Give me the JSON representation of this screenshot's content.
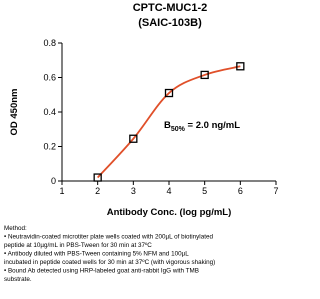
{
  "chart_data": {
    "type": "line",
    "title": "CPTC-MUC1-2",
    "subtitle": "(SAIC-103B)",
    "y_label": "OD 450nm",
    "x_label": "Antibody Conc. (log pg/mL)",
    "annotation": {
      "main": "B",
      "subscript": "50%",
      "suffix": " = 2.0 ng/mL"
    },
    "x": [
      2,
      3,
      4,
      5,
      6
    ],
    "series": [
      {
        "color": "#e0502a",
        "values": [
          0.02,
          0.245,
          0.51,
          0.615,
          0.665
        ]
      }
    ],
    "xlim": [
      1,
      7
    ],
    "xticks": [
      1,
      2,
      3,
      4,
      5,
      6,
      7
    ],
    "ylim": [
      0,
      0.8
    ],
    "yticks": [
      0,
      0.2,
      0.4,
      0.6,
      0.8
    ]
  },
  "notes": {
    "heading": "Method:",
    "lines": [
      "• Neutravidin-coated microtiter plate wells coated with 200µL of biotinylated",
      "peptide  at 10µg/mL in PBS-Tween for 30 min at 37ºC",
      "• Antibody diluted with PBS-Tween containing 5% NFM and 100µL",
      "incubated in peptide coated wells for 30 min at 37ºC (with vigorous shaking)",
      "• Bound Ab detected using HRP-labeled goat anti-rabbit IgG with TMB",
      "substrate."
    ]
  }
}
